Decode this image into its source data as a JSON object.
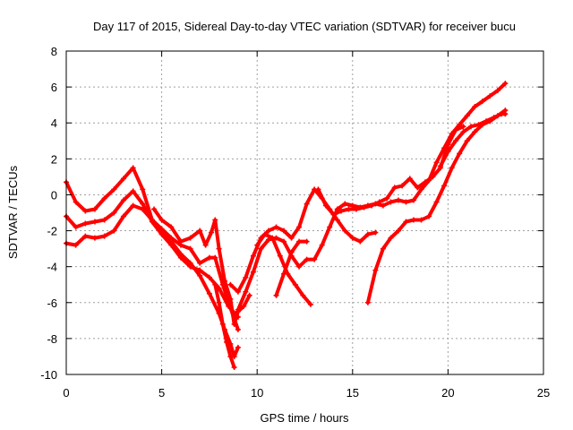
{
  "chart_data": {
    "type": "scatter",
    "title": "Day 117 of 2015, Sidereal Day-to-day VTEC variation (SDTVAR) for receiver bucu",
    "xlabel": "GPS time / hours",
    "ylabel": "SDTVAR / TECUs",
    "xlim": [
      0,
      25
    ],
    "ylim": [
      -10,
      8
    ],
    "xticks": [
      0,
      5,
      10,
      15,
      20,
      25
    ],
    "yticks": [
      -10,
      -8,
      -6,
      -4,
      -2,
      0,
      2,
      4,
      6,
      8
    ],
    "grid": true,
    "legend": "none",
    "marker": "plus",
    "color": "#ff0000",
    "series": [
      {
        "x": [
          0.0,
          0.5,
          1.0,
          1.5,
          2.0,
          2.5,
          3.0,
          3.5,
          4.0,
          4.5,
          5.0,
          5.5,
          6.0,
          6.5,
          7.0,
          7.5,
          8.0,
          8.3,
          8.6,
          8.8,
          9.0
        ],
        "y": [
          0.7,
          -0.4,
          -0.9,
          -0.8,
          -0.2,
          0.3,
          0.9,
          1.5,
          0.3,
          -1.4,
          -2.0,
          -2.6,
          -3.3,
          -3.8,
          -4.5,
          -5.5,
          -6.6,
          -7.5,
          -8.3,
          -9.0,
          -8.5
        ]
      },
      {
        "x": [
          0.0,
          0.5,
          1.0,
          1.5,
          2.0,
          2.5,
          3.0,
          3.5,
          4.0,
          4.5,
          5.0,
          5.5,
          6.0,
          6.5,
          7.0,
          7.5,
          8.0,
          8.5,
          9.0
        ],
        "y": [
          -1.2,
          -1.8,
          -1.6,
          -1.5,
          -1.4,
          -1.0,
          -0.3,
          0.2,
          -0.5,
          -1.5,
          -2.2,
          -2.8,
          -3.5,
          -4.0,
          -4.2,
          -4.6,
          -5.2,
          -6.2,
          -6.8
        ]
      },
      {
        "x": [
          0.0,
          0.5,
          1.0,
          1.5,
          2.0,
          2.5,
          3.0,
          3.5,
          4.0,
          4.5,
          5.0,
          5.5,
          6.0,
          6.5,
          7.0,
          7.5,
          7.8,
          8.2,
          8.6,
          9.0
        ],
        "y": [
          -2.7,
          -2.8,
          -2.3,
          -2.4,
          -2.3,
          -2.0,
          -1.2,
          -0.6,
          -0.8,
          -1.4,
          -1.9,
          -2.4,
          -2.8,
          -3.0,
          -3.8,
          -3.5,
          -3.5,
          -5.0,
          -6.3,
          -7.5
        ]
      },
      {
        "x": [
          4.6,
          5.0,
          5.5,
          6.0,
          6.5,
          7.0,
          7.3,
          7.6,
          7.8,
          8.0,
          8.3,
          8.6,
          8.8,
          9.0,
          9.3,
          9.6
        ],
        "y": [
          -0.8,
          -1.4,
          -1.8,
          -2.6,
          -2.4,
          -2.0,
          -2.8,
          -2.1,
          -1.4,
          -3.0,
          -4.8,
          -5.8,
          -7.2,
          -6.5,
          -6.2,
          -5.6
        ]
      },
      {
        "x": [
          7.8,
          8.0,
          8.2,
          8.4,
          8.6,
          8.8
        ],
        "y": [
          -5.0,
          -6.0,
          -7.2,
          -8.2,
          -9.0,
          -9.6
        ]
      },
      {
        "x": [
          8.6,
          9.0,
          9.4,
          9.8,
          10.2,
          10.6,
          11.0,
          11.4,
          11.8,
          12.2,
          12.6,
          13.0,
          13.4,
          13.8,
          14.2,
          14.6,
          15.0,
          15.4,
          15.8,
          16.2
        ],
        "y": [
          -5.0,
          -5.4,
          -4.6,
          -3.4,
          -2.4,
          -2.0,
          -1.8,
          -2.0,
          -2.4,
          -1.8,
          -0.5,
          0.3,
          -0.2,
          -0.8,
          -1.4,
          -2.0,
          -2.4,
          -2.6,
          -2.2,
          -2.1
        ]
      },
      {
        "x": [
          9.0,
          9.4,
          9.8,
          10.2,
          10.6,
          11.0,
          11.4,
          11.8,
          12.2,
          12.6,
          13.0,
          13.4,
          13.8,
          14.2,
          14.6,
          15.0,
          15.4,
          15.8,
          16.2,
          16.6,
          17.0,
          17.4,
          17.8,
          18.2,
          18.6,
          19.0,
          19.4,
          19.8,
          20.2,
          20.6,
          21.0,
          21.4,
          21.8,
          22.2,
          22.6,
          23.0
        ],
        "y": [
          -6.4,
          -5.4,
          -4.3,
          -3.0,
          -2.5,
          -2.4,
          -2.6,
          -3.4,
          -4.0,
          -3.6,
          -3.6,
          -2.8,
          -1.8,
          -0.8,
          -0.5,
          -0.6,
          -0.7,
          -0.6,
          -0.5,
          -0.6,
          -0.4,
          -0.3,
          -0.4,
          -0.3,
          0.3,
          0.8,
          1.8,
          2.6,
          3.4,
          3.9,
          4.4,
          4.9,
          5.2,
          5.5,
          5.8,
          6.2
        ]
      },
      {
        "x": [
          10.0,
          10.4,
          10.8,
          11.2,
          11.6,
          12.0,
          12.4,
          12.8
        ],
        "y": [
          -2.8,
          -2.2,
          -2.4,
          -3.4,
          -4.4,
          -5.0,
          -5.6,
          -6.1
        ]
      },
      {
        "x": [
          11.0,
          11.4,
          11.8,
          12.2,
          12.6
        ],
        "y": [
          -5.6,
          -4.4,
          -3.2,
          -2.6,
          -2.6
        ]
      },
      {
        "x": [
          15.8,
          16.2,
          16.6,
          17.0,
          17.4,
          17.8,
          18.2,
          18.6,
          19.0,
          19.4,
          19.8,
          20.2,
          20.6,
          21.0,
          21.4,
          21.8,
          22.2,
          22.6,
          23.0
        ],
        "y": [
          -6.0,
          -4.2,
          -3.0,
          -2.4,
          -2.0,
          -1.5,
          -1.4,
          -1.4,
          -1.2,
          -0.4,
          0.5,
          1.5,
          2.3,
          3.0,
          3.5,
          3.9,
          4.1,
          4.4,
          4.7
        ]
      },
      {
        "x": [
          19.6,
          20.0,
          20.4,
          20.8,
          21.2,
          21.6,
          22.0,
          22.4,
          22.8,
          23.0
        ],
        "y": [
          1.6,
          2.4,
          3.0,
          3.5,
          3.8,
          3.9,
          4.1,
          4.3,
          4.5,
          4.5
        ]
      },
      {
        "x": [
          13.2,
          13.6,
          14.0,
          14.4,
          14.8,
          15.2,
          15.6,
          16.0,
          16.4,
          16.8,
          17.2,
          17.6,
          18.0,
          18.4,
          18.8,
          19.2,
          19.6,
          20.0,
          20.4,
          20.8
        ],
        "y": [
          0.3,
          -0.6,
          -1.1,
          -0.9,
          -0.8,
          -0.8,
          -0.7,
          -0.6,
          -0.4,
          -0.2,
          0.4,
          0.5,
          0.9,
          0.4,
          0.7,
          1.0,
          1.5,
          2.8,
          3.6,
          3.8
        ]
      }
    ]
  }
}
